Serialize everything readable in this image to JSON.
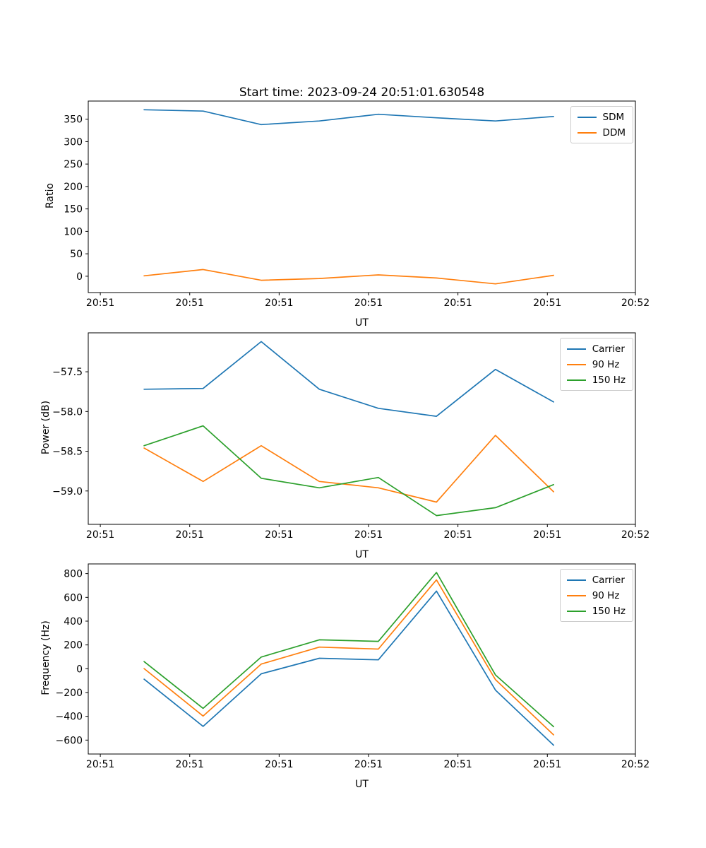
{
  "figure": {
    "title": "Start time: 2023-09-24 20:51:01.630548",
    "background": "#ffffff",
    "text_color": "#000000",
    "series_palette": [
      "#1f77b4",
      "#ff7f0e",
      "#2ca02c"
    ]
  },
  "chart_data": [
    {
      "type": "line",
      "title": "",
      "xlabel": "UT",
      "ylabel": "Ratio",
      "x": [
        4.9,
        11.5,
        18.0,
        24.5,
        31.1,
        37.6,
        44.2,
        50.7
      ],
      "xlim": [
        -1.35,
        59.85
      ],
      "xticks": [
        0,
        10,
        20,
        30,
        40,
        50,
        60
      ],
      "xtick_labels": [
        "20:51",
        "20:51",
        "20:51",
        "20:51",
        "20:51",
        "20:51",
        "20:52"
      ],
      "ylim": [
        -36.4,
        390.4
      ],
      "yticks": [
        350,
        300,
        250,
        200,
        150,
        100,
        50,
        0
      ],
      "ytick_decimals": 0,
      "grid": false,
      "legend_position": "upper right",
      "series": [
        {
          "name": "SDM",
          "color": "#1f77b4",
          "values": [
            371,
            368,
            338,
            346,
            361,
            353,
            346,
            356
          ]
        },
        {
          "name": "DDM",
          "color": "#ff7f0e",
          "values": [
            1,
            15,
            -9,
            -5,
            3,
            -4,
            -17,
            2
          ]
        }
      ]
    },
    {
      "type": "line",
      "title": "",
      "xlabel": "UT",
      "ylabel": "Power (dB)",
      "x": [
        4.9,
        11.5,
        18.0,
        24.5,
        31.1,
        37.6,
        44.2,
        50.7
      ],
      "xlim": [
        -1.35,
        59.85
      ],
      "xticks": [
        0,
        10,
        20,
        30,
        40,
        50,
        60
      ],
      "xtick_labels": [
        "20:51",
        "20:51",
        "20:51",
        "20:51",
        "20:51",
        "20:51",
        "20:52"
      ],
      "ylim": [
        -59.42,
        -57.01
      ],
      "yticks": [
        -57.5,
        -58.0,
        -58.5,
        -59.0
      ],
      "ytick_decimals": 1,
      "grid": false,
      "legend_position": "upper right",
      "series": [
        {
          "name": "Carrier",
          "color": "#1f77b4",
          "values": [
            -57.72,
            -57.71,
            -57.12,
            -57.72,
            -57.96,
            -58.06,
            -57.47,
            -57.88
          ]
        },
        {
          "name": "90 Hz",
          "color": "#ff7f0e",
          "values": [
            -58.46,
            -58.88,
            -58.43,
            -58.88,
            -58.96,
            -59.14,
            -58.3,
            -59.01
          ]
        },
        {
          "name": "150 Hz",
          "color": "#2ca02c",
          "values": [
            -58.43,
            -58.18,
            -58.84,
            -58.96,
            -58.83,
            -59.31,
            -59.21,
            -58.92
          ]
        }
      ]
    },
    {
      "type": "line",
      "title": "",
      "xlabel": "UT",
      "ylabel": "Frequency (Hz)",
      "x": [
        4.9,
        11.5,
        18.0,
        24.5,
        31.1,
        37.6,
        44.2,
        50.7
      ],
      "xlim": [
        -1.35,
        59.85
      ],
      "xticks": [
        0,
        10,
        20,
        30,
        40,
        50,
        60
      ],
      "xtick_labels": [
        "20:51",
        "20:51",
        "20:51",
        "20:51",
        "20:51",
        "20:51",
        "20:52"
      ],
      "ylim": [
        -717,
        881
      ],
      "yticks": [
        800,
        600,
        400,
        200,
        0,
        -200,
        -400,
        -600
      ],
      "ytick_decimals": 0,
      "grid": false,
      "legend_position": "upper right",
      "series": [
        {
          "name": "Carrier",
          "color": "#1f77b4",
          "values": [
            -88,
            -485,
            -43,
            88,
            75,
            653,
            -180,
            -643
          ]
        },
        {
          "name": "90 Hz",
          "color": "#ff7f0e",
          "values": [
            1,
            -398,
            39,
            182,
            165,
            747,
            -92,
            -556
          ]
        },
        {
          "name": "150 Hz",
          "color": "#2ca02c",
          "values": [
            60,
            -333,
            98,
            243,
            230,
            809,
            -52,
            -487
          ]
        }
      ]
    }
  ]
}
